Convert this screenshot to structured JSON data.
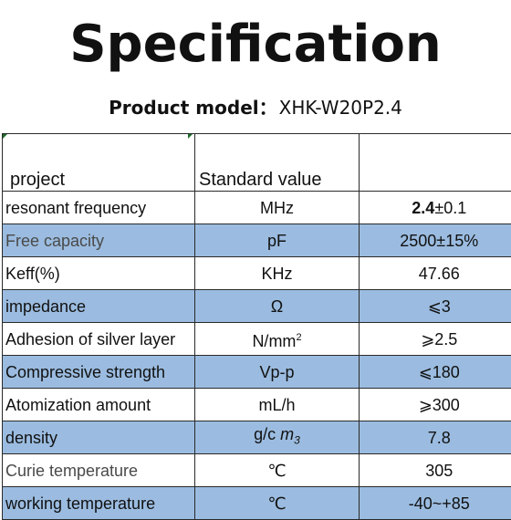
{
  "title": "Specification",
  "model": {
    "label": "Product model：",
    "value": "XHK-W20P2.4"
  },
  "table": {
    "header": {
      "project": "project",
      "standard": "Standard value"
    },
    "rows": [
      {
        "project": "resonant frequency",
        "unit": "MHz",
        "value_bold": "2.4",
        "value": "±0.1",
        "shade": false
      },
      {
        "project": "Free capacity",
        "unit": "pF",
        "value": "2500±15%",
        "shade": true
      },
      {
        "project": "Keff(%)",
        "unit": "KHz",
        "value": "47.66",
        "shade": false
      },
      {
        "project": "impedance",
        "unit": "Ω",
        "value": "⩽3",
        "shade": true
      },
      {
        "project": "Adhesion of silver layer",
        "unit": "N/mm",
        "unit_sup": "2",
        "value": "⩾2.5",
        "shade": false
      },
      {
        "project": "Compressive strength",
        "unit": "Vp-p",
        "value": "⩽180",
        "shade": true
      },
      {
        "project": "Atomization amount",
        "unit": "mL/h",
        "value": "⩾300",
        "shade": false
      },
      {
        "project": "density",
        "unit": "g/c",
        "unit_italic": "m",
        "unit_sub": "3",
        "value": "7.8",
        "shade": true
      },
      {
        "project": "Curie temperature",
        "unit": "℃",
        "value": "305",
        "shade": false
      },
      {
        "project": "working temperature",
        "unit": "℃",
        "value": "-40~+85",
        "shade": true
      }
    ]
  },
  "colors": {
    "shade": "#9bbce0",
    "border": "#2a2a2a",
    "corner_mark": "#1e6b2a"
  }
}
